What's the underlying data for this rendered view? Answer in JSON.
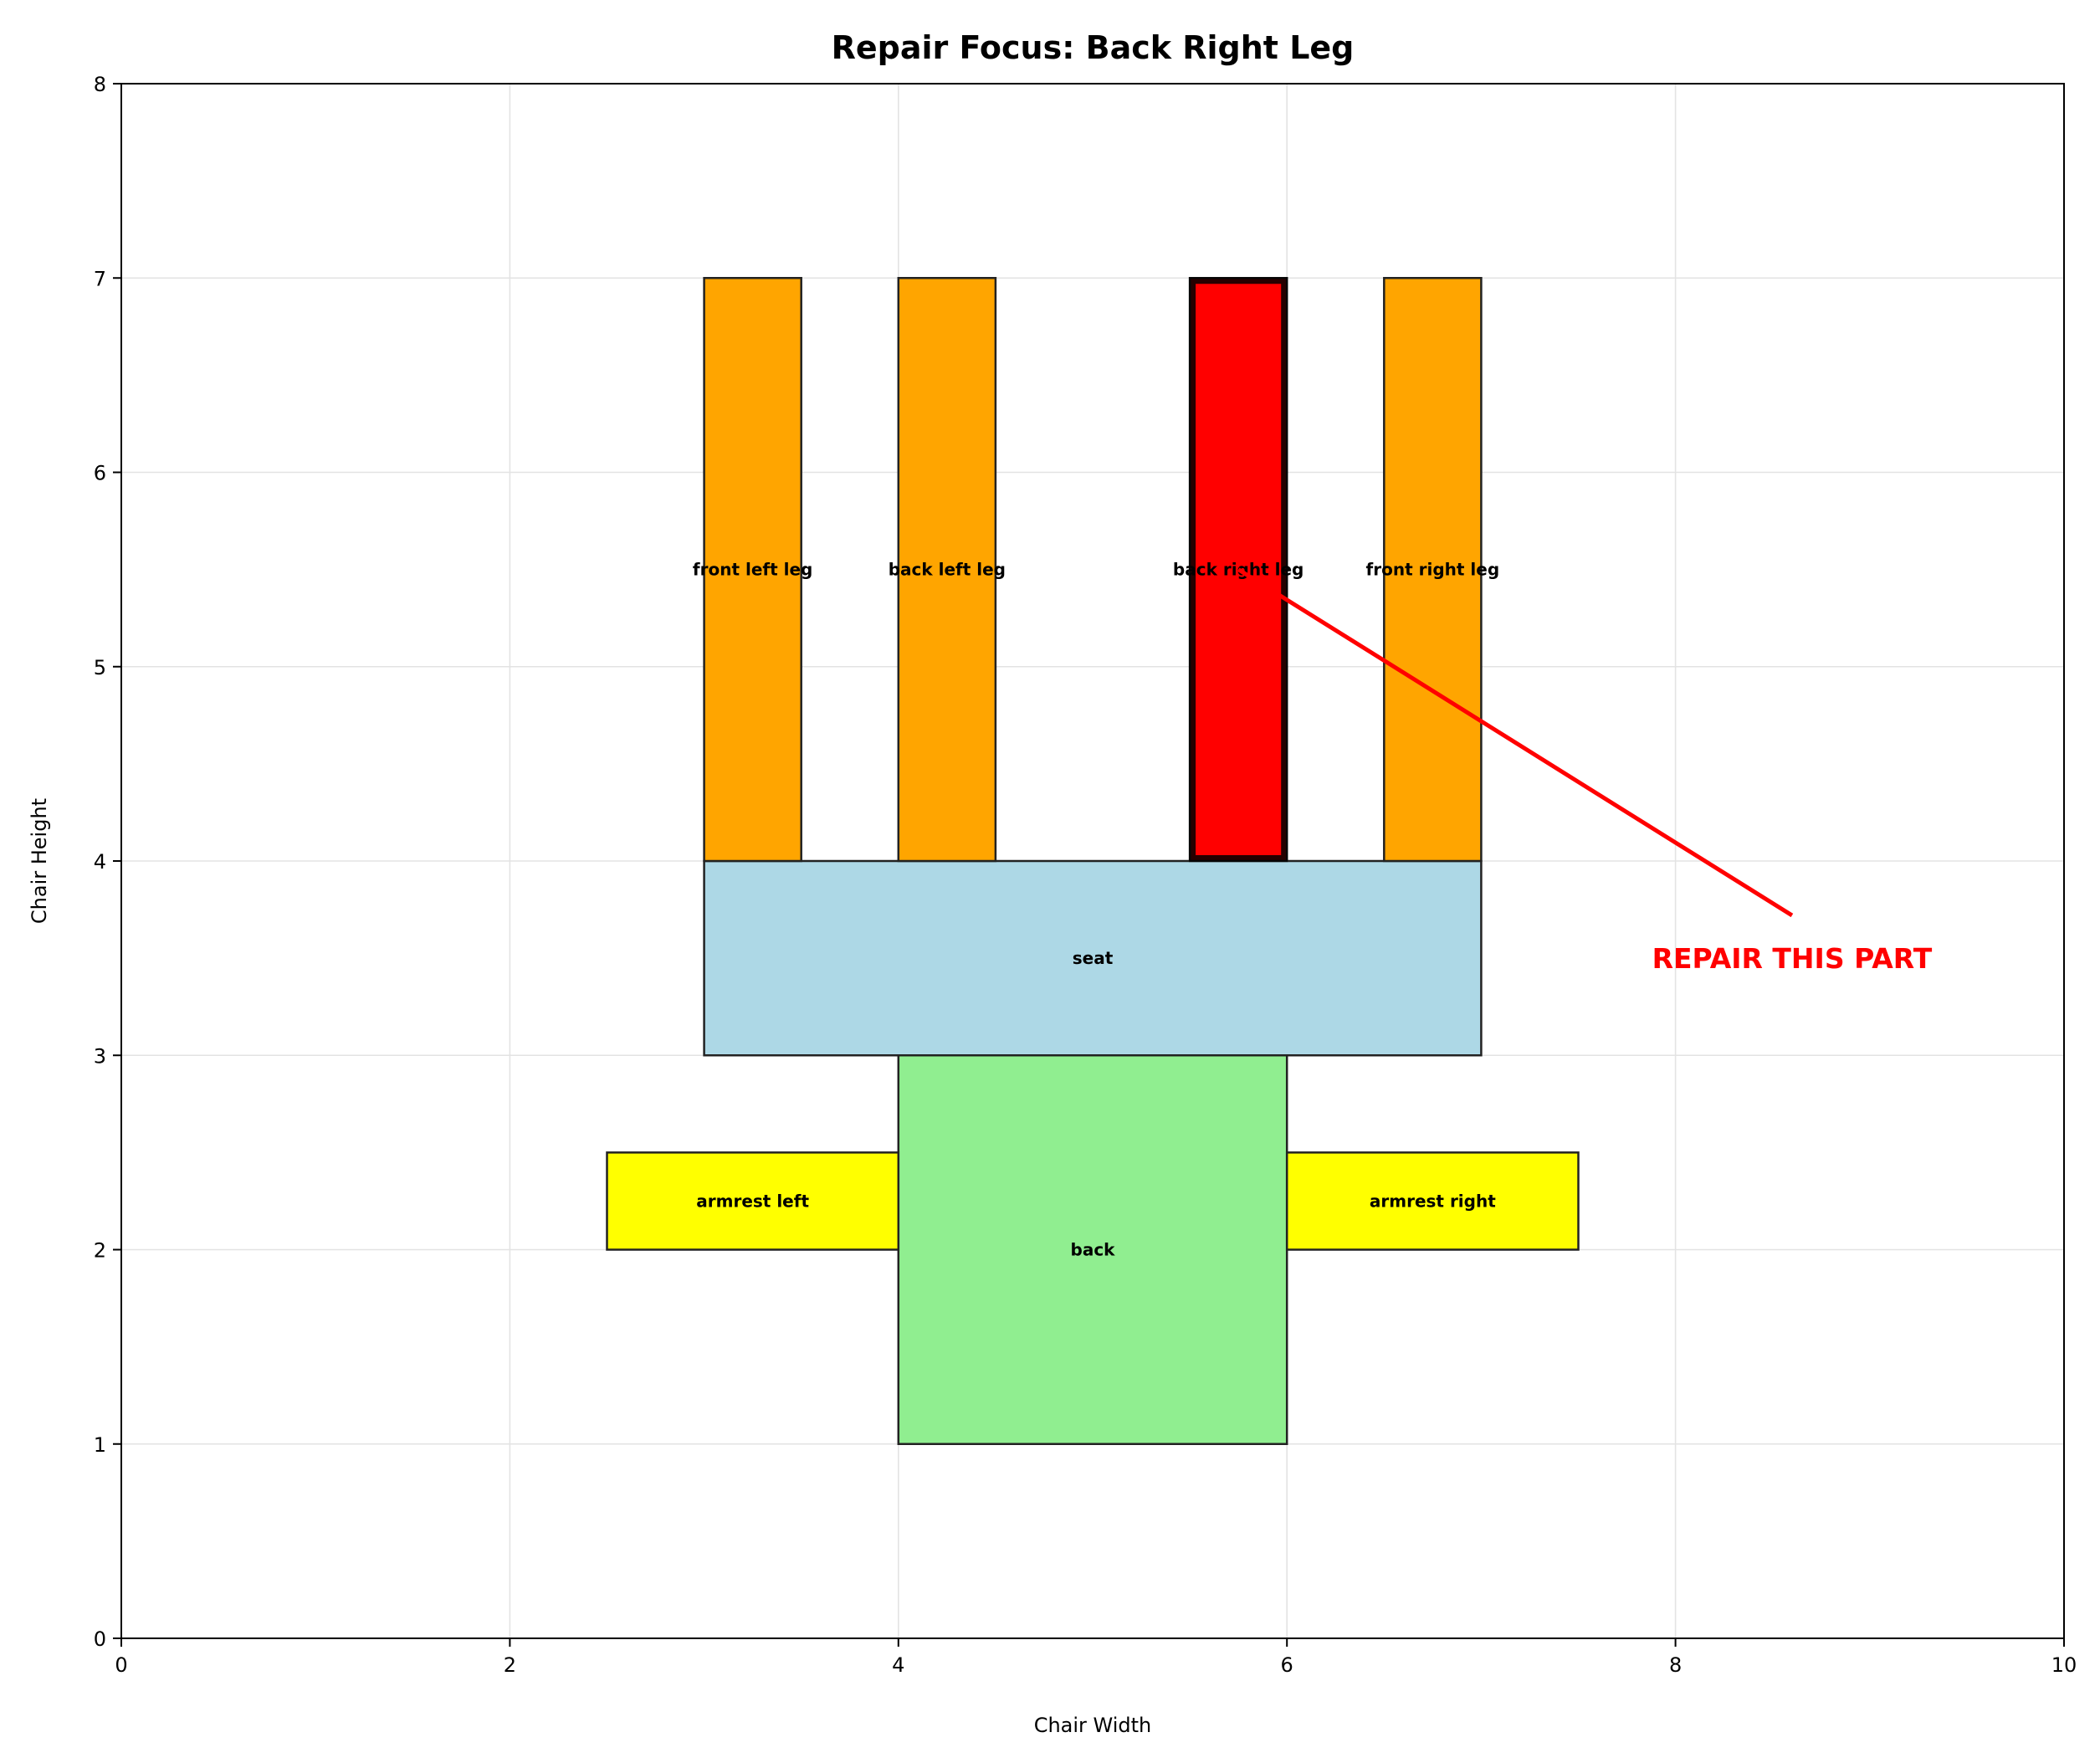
{
  "chart_data": {
    "type": "diagram",
    "title": "Repair Focus: Back Right Leg",
    "xlabel": "Chair Width",
    "ylabel": "Chair Height",
    "xlim": [
      0,
      10
    ],
    "ylim": [
      0,
      8
    ],
    "xticks": [
      0,
      2,
      4,
      6,
      8,
      10
    ],
    "yticks": [
      0,
      1,
      2,
      3,
      4,
      5,
      6,
      7,
      8
    ],
    "grid": true,
    "parts": [
      {
        "label": "back",
        "x": 4,
        "y": 1,
        "width": 2,
        "height": 2,
        "color": "#90ee90",
        "label_x": 5,
        "label_y": 2
      },
      {
        "label": "seat",
        "x": 3,
        "y": 3,
        "width": 4,
        "height": 1,
        "color": "#add8e6",
        "label_x": 5,
        "label_y": 3.5
      },
      {
        "label": "armrest left",
        "x": 2.5,
        "y": 2,
        "width": 1.5,
        "height": 0.5,
        "color": "#ffff00",
        "label_x": 3.25,
        "label_y": 2.25
      },
      {
        "label": "armrest right",
        "x": 6,
        "y": 2,
        "width": 1.5,
        "height": 0.5,
        "color": "#ffff00",
        "label_x": 6.75,
        "label_y": 2.25
      },
      {
        "label": "front left leg",
        "x": 3,
        "y": 4,
        "width": 0.5,
        "height": 3,
        "color": "#ffa500",
        "label_x": 3.25,
        "label_y": 5.5
      },
      {
        "label": "back left leg",
        "x": 4,
        "y": 4,
        "width": 0.5,
        "height": 3,
        "color": "#ffa500",
        "label_x": 4.25,
        "label_y": 5.5
      },
      {
        "label": "back right leg",
        "x": 5.5,
        "y": 4,
        "width": 0.5,
        "height": 3,
        "color": "#ff0000",
        "label_x": 5.75,
        "label_y": 5.5,
        "highlight": true
      },
      {
        "label": "front right leg",
        "x": 6.5,
        "y": 4,
        "width": 0.5,
        "height": 3,
        "color": "#ffa500",
        "label_x": 6.75,
        "label_y": 5.5
      }
    ],
    "annotation": {
      "text": "REPAIR THIS PART",
      "color": "#ff0000",
      "text_x": 8.6,
      "text_y": 3.5,
      "arrow_from_x": 8.6,
      "arrow_from_y": 3.72,
      "arrow_to_x": 5.75,
      "arrow_to_y": 5.5
    }
  }
}
